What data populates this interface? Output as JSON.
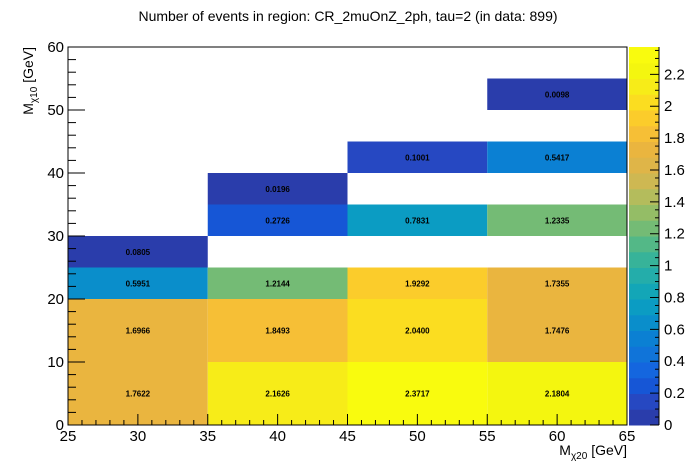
{
  "chart_data": {
    "type": "heatmap",
    "title": "Number of events in region: CR_2muOnZ_2ph, tau=2 (in data: 899)",
    "xlabel": {
      "main": "M",
      "sub": "χ20",
      "unit": " [GeV]"
    },
    "ylabel": {
      "main": "M",
      "sub": "χ10",
      "unit": " [GeV]"
    },
    "xlim": [
      25,
      65
    ],
    "ylim": [
      0,
      60
    ],
    "x_ticks": [
      25,
      30,
      35,
      40,
      45,
      50,
      55,
      60,
      65
    ],
    "y_ticks": [
      0,
      10,
      20,
      30,
      40,
      50,
      60
    ],
    "zlim": [
      0,
      2.3717
    ],
    "z_ticks": [
      0,
      0.2,
      0.4,
      0.6,
      0.8,
      1,
      1.2,
      1.4,
      1.6,
      1.8,
      2,
      2.2
    ],
    "cells": [
      {
        "x": [
          25,
          35
        ],
        "y": [
          0,
          10
        ],
        "value": 1.7622,
        "label": "1.7622"
      },
      {
        "x": [
          35,
          45
        ],
        "y": [
          0,
          10
        ],
        "value": 2.1626,
        "label": "2.1626"
      },
      {
        "x": [
          45,
          55
        ],
        "y": [
          0,
          10
        ],
        "value": 2.3717,
        "label": "2.3717"
      },
      {
        "x": [
          55,
          65
        ],
        "y": [
          0,
          10
        ],
        "value": 2.1804,
        "label": "2.1804"
      },
      {
        "x": [
          25,
          35
        ],
        "y": [
          10,
          20
        ],
        "value": 1.6966,
        "label": "1.6966"
      },
      {
        "x": [
          35,
          45
        ],
        "y": [
          10,
          20
        ],
        "value": 1.8493,
        "label": "1.8493"
      },
      {
        "x": [
          45,
          55
        ],
        "y": [
          10,
          20
        ],
        "value": 2.04,
        "label": "2.0400"
      },
      {
        "x": [
          55,
          65
        ],
        "y": [
          10,
          20
        ],
        "value": 1.7476,
        "label": "1.7476"
      },
      {
        "x": [
          25,
          35
        ],
        "y": [
          20,
          25
        ],
        "value": 0.5951,
        "label": "0.5951"
      },
      {
        "x": [
          35,
          45
        ],
        "y": [
          20,
          25
        ],
        "value": 1.2144,
        "label": "1.2144"
      },
      {
        "x": [
          45,
          55
        ],
        "y": [
          20,
          25
        ],
        "value": 1.9292,
        "label": "1.9292"
      },
      {
        "x": [
          55,
          65
        ],
        "y": [
          20,
          25
        ],
        "value": 1.7355,
        "label": "1.7355"
      },
      {
        "x": [
          25,
          35
        ],
        "y": [
          25,
          30
        ],
        "value": 0.0805,
        "label": "0.0805"
      },
      {
        "x": [
          35,
          45
        ],
        "y": [
          30,
          35
        ],
        "value": 0.2726,
        "label": "0.2726"
      },
      {
        "x": [
          45,
          55
        ],
        "y": [
          30,
          35
        ],
        "value": 0.7831,
        "label": "0.7831"
      },
      {
        "x": [
          55,
          65
        ],
        "y": [
          30,
          35
        ],
        "value": 1.2335,
        "label": "1.2335"
      },
      {
        "x": [
          35,
          45
        ],
        "y": [
          35,
          40
        ],
        "value": 0.0196,
        "label": "0.0196"
      },
      {
        "x": [
          45,
          55
        ],
        "y": [
          40,
          45
        ],
        "value": 0.1001,
        "label": "0.1001"
      },
      {
        "x": [
          55,
          65
        ],
        "y": [
          40,
          45
        ],
        "value": 0.5417,
        "label": "0.5417"
      },
      {
        "x": [
          55,
          65
        ],
        "y": [
          50,
          55
        ],
        "value": 0.0098,
        "label": "0.0098"
      }
    ],
    "palette": [
      "#2a3dab",
      "#2648c2",
      "#1656d6",
      "#1466df",
      "#1074d9",
      "#0b80d3",
      "#0a8ecb",
      "#0b9cc3",
      "#13a6b7",
      "#24adaa",
      "#37b399",
      "#53b887",
      "#74bb75",
      "#94bd66",
      "#b4bc5c",
      "#ceb852",
      "#dfb548",
      "#eab53f",
      "#f6bf36",
      "#fbcc2b",
      "#fbdd20",
      "#f7ec18",
      "#f4f60f",
      "#f9fb0e"
    ]
  }
}
